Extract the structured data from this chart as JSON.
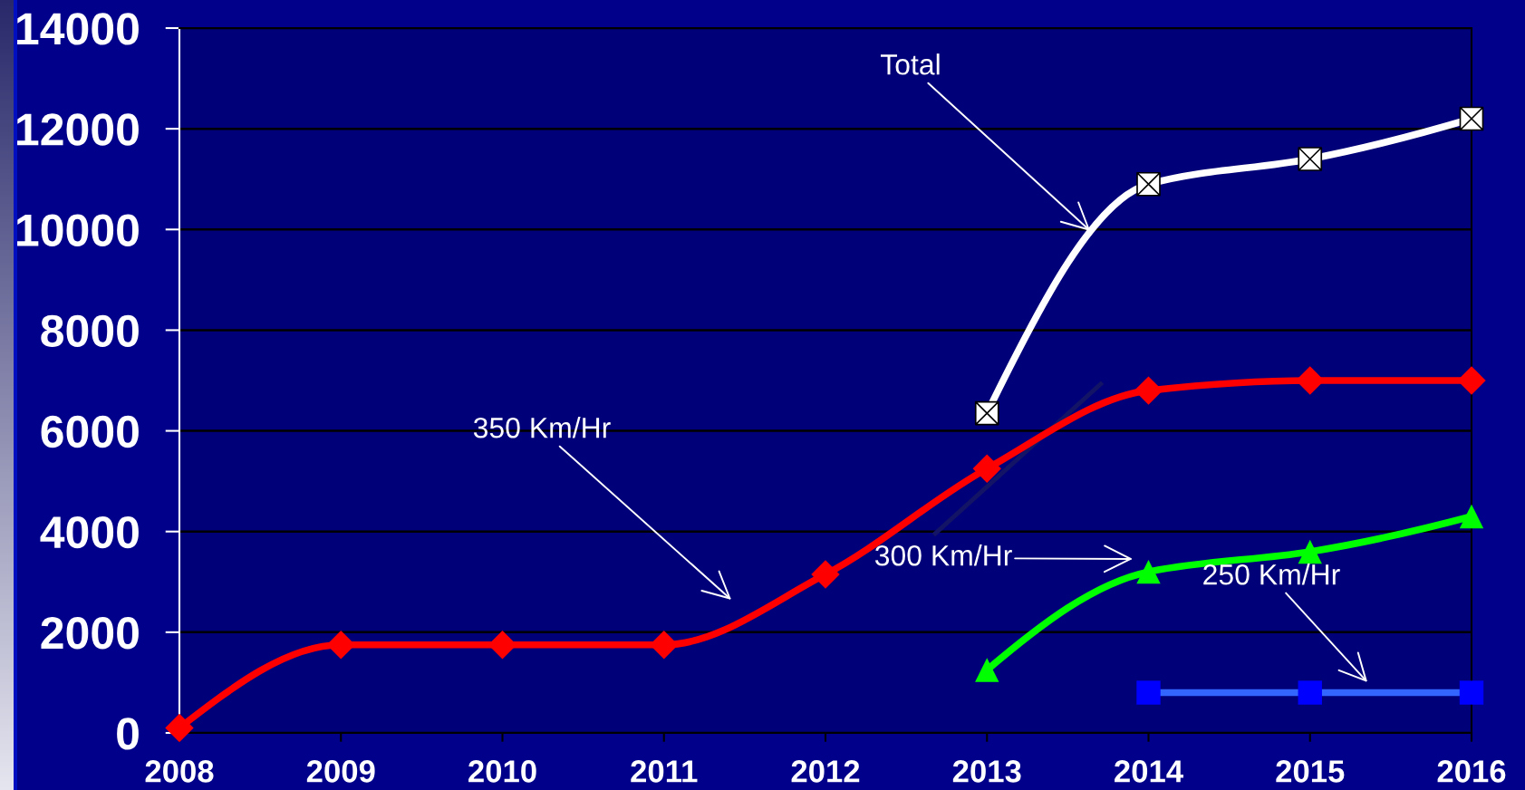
{
  "chart_data": {
    "type": "line",
    "x": [
      2008,
      2009,
      2010,
      2011,
      2012,
      2013,
      2014,
      2015,
      2016
    ],
    "xlim": [
      2008,
      2016
    ],
    "xticks": [
      2008,
      2009,
      2010,
      2011,
      2012,
      2013,
      2014,
      2015,
      2016
    ],
    "ylim": [
      0,
      14000
    ],
    "yticks": [
      0,
      2000,
      4000,
      6000,
      8000,
      10000,
      12000,
      14000
    ],
    "grid": "y",
    "line_style": "solid",
    "series": [
      {
        "color": "#ff0000",
        "marker": "diamond",
        "values": [
          100,
          1750,
          1750,
          1750,
          3150,
          5250,
          6800,
          7000,
          7000
        ]
      },
      {
        "color": "#00ff00",
        "marker": "triangle",
        "values": [
          null,
          null,
          null,
          null,
          null,
          1250,
          3200,
          3600,
          4300
        ]
      },
      {
        "color": "#3366ff",
        "colors": [
          null,
          null,
          null,
          null,
          null,
          null,
          "#0000ff",
          "#0000ff",
          "#0000ff"
        ],
        "marker": "square",
        "values": [
          null,
          null,
          null,
          null,
          null,
          null,
          800,
          800,
          800
        ]
      },
      {
        "color": "#ffffff",
        "marker": "cross",
        "values": [
          null,
          null,
          null,
          null,
          null,
          6350,
          10900,
          11400,
          12200
        ]
      }
    ],
    "annotations": [
      {
        "text": "Total",
        "x": 2013.64,
        "y": 9970
      },
      "350 Km/Hr",
      "300 Km/Hr",
      "250 Km/Hr"
    ]
  }
}
